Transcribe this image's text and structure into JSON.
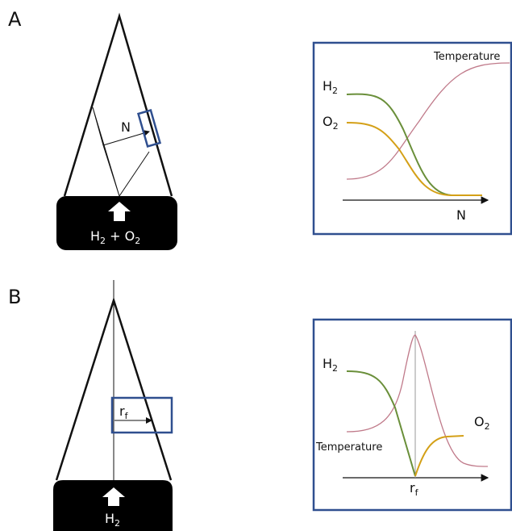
{
  "panel_a": {
    "label": "A",
    "arrow_label": "N",
    "inlet": [
      "H",
      "2",
      " + O",
      "2"
    ],
    "plot": {
      "temperature": "Temperature",
      "h2": [
        "H",
        "2"
      ],
      "o2": [
        "O",
        "2"
      ],
      "x_axis": "N"
    }
  },
  "panel_b": {
    "label": "B",
    "radius": [
      "r",
      "f"
    ],
    "inlet": [
      "H",
      "2"
    ],
    "plot": {
      "h2": [
        "H",
        "2"
      ],
      "temperature": "Temperature",
      "o2": [
        "O",
        "2"
      ],
      "x_axis": [
        "r",
        "f"
      ]
    }
  }
}
